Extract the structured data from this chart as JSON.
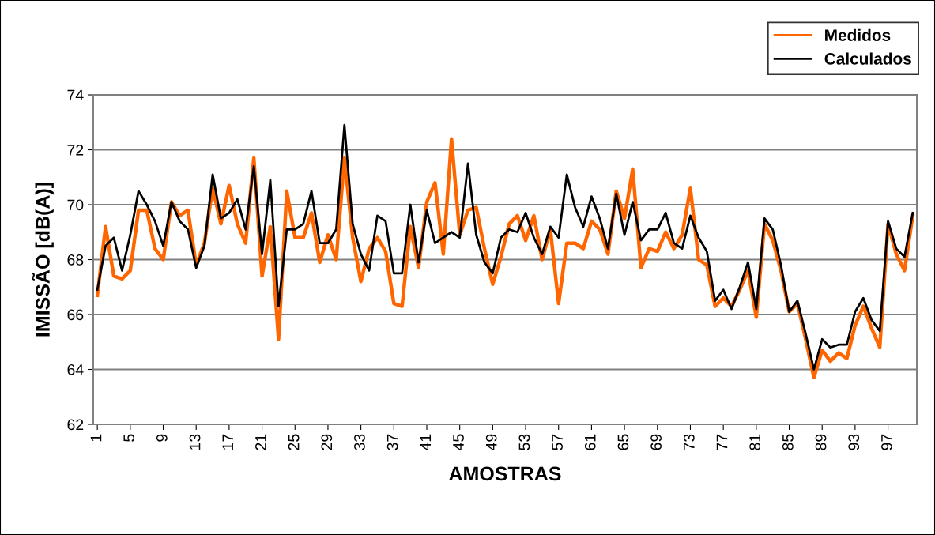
{
  "chart_data": {
    "type": "line",
    "xlabel": "AMOSTRAS",
    "ylabel": "IMISSÃO [dB(A)]",
    "categories": [
      "1",
      null,
      null,
      null,
      "5",
      null,
      null,
      null,
      "9",
      null,
      null,
      null,
      "13",
      null,
      null,
      null,
      "17",
      null,
      null,
      null,
      "21",
      null,
      null,
      null,
      "25",
      null,
      null,
      null,
      "29",
      null,
      null,
      null,
      "33",
      null,
      null,
      null,
      "37",
      null,
      null,
      null,
      "41",
      null,
      null,
      null,
      "45",
      null,
      null,
      null,
      "49",
      null,
      null,
      null,
      "53",
      null,
      null,
      null,
      "57",
      null,
      null,
      null,
      "61",
      null,
      null,
      null,
      "65",
      null,
      null,
      null,
      "69",
      null,
      null,
      null,
      "73",
      null,
      null,
      null,
      "77",
      null,
      null,
      null,
      "81",
      null,
      null,
      null,
      "85",
      null,
      null,
      null,
      "89",
      null,
      null,
      null,
      "93",
      null,
      null,
      null,
      "97",
      null,
      null,
      null
    ],
    "series": [
      {
        "name": "Medidos",
        "color": "#ff6600",
        "values": [
          66.7,
          69.2,
          67.4,
          67.3,
          67.6,
          69.8,
          69.8,
          68.4,
          68.0,
          70.1,
          69.6,
          69.8,
          67.8,
          68.6,
          70.6,
          69.3,
          70.7,
          69.3,
          68.6,
          71.7,
          67.4,
          69.2,
          65.1,
          70.5,
          68.8,
          68.8,
          69.7,
          67.9,
          68.9,
          68.0,
          71.7,
          68.8,
          67.2,
          68.4,
          68.8,
          68.3,
          66.4,
          66.3,
          69.2,
          67.7,
          70.1,
          70.8,
          68.2,
          72.4,
          68.9,
          69.8,
          69.9,
          68.4,
          67.1,
          68.1,
          69.3,
          69.6,
          68.7,
          69.6,
          68.0,
          69.1,
          66.4,
          68.6,
          68.6,
          68.4,
          69.4,
          69.1,
          68.2,
          70.5,
          69.5,
          71.3,
          67.7,
          68.4,
          68.3,
          69.0,
          68.4,
          68.9,
          70.6,
          68.0,
          67.8,
          66.3,
          66.6,
          66.3,
          66.9,
          67.6,
          65.9,
          69.3,
          68.7,
          67.6,
          66.1,
          66.4,
          65.1,
          63.7,
          64.7,
          64.3,
          64.6,
          64.4,
          65.6,
          66.3,
          65.5,
          64.8,
          69.3,
          68.2,
          67.6,
          69.6
        ]
      },
      {
        "name": "Calculados",
        "color": "#000000",
        "values": [
          66.9,
          68.5,
          68.8,
          67.6,
          68.9,
          70.5,
          70.0,
          69.4,
          68.5,
          70.1,
          69.4,
          69.1,
          67.7,
          68.5,
          71.1,
          69.5,
          69.7,
          70.2,
          69.1,
          71.4,
          68.2,
          70.9,
          66.3,
          69.1,
          69.1,
          69.3,
          70.5,
          68.6,
          68.6,
          69.1,
          72.9,
          69.3,
          68.2,
          67.6,
          69.6,
          69.4,
          67.5,
          67.5,
          70.0,
          67.9,
          69.8,
          68.6,
          68.8,
          69.0,
          68.8,
          71.5,
          68.9,
          67.9,
          67.5,
          68.8,
          69.1,
          69.0,
          69.7,
          68.8,
          68.2,
          69.2,
          68.8,
          71.1,
          69.9,
          69.2,
          70.3,
          69.5,
          68.4,
          70.4,
          68.9,
          70.1,
          68.7,
          69.1,
          69.1,
          69.7,
          68.6,
          68.4,
          69.6,
          68.8,
          68.3,
          66.5,
          66.9,
          66.2,
          67.0,
          67.9,
          66.2,
          69.5,
          69.1,
          67.8,
          66.1,
          66.5,
          65.3,
          64.0,
          65.1,
          64.8,
          64.9,
          64.9,
          66.1,
          66.6,
          65.8,
          65.4,
          69.4,
          68.4,
          68.1,
          69.7
        ]
      }
    ],
    "ylim": [
      62,
      74
    ],
    "yticks": [
      62,
      64,
      66,
      68,
      70,
      72,
      74
    ],
    "grid": "y",
    "legend": "top right",
    "marker": "none",
    "line_style": "solid"
  }
}
